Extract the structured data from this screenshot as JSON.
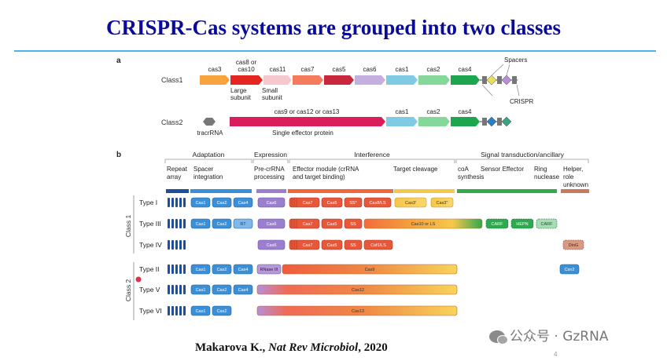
{
  "slide": {
    "title": "CRISPR-Cas systems are grouped into two classes",
    "citation_author": "Makarova K., ",
    "citation_journal": "Nat Rev Microbiol",
    "citation_year": ", 2020",
    "watermark": "公众号 · GzRNA",
    "page_number": "4"
  },
  "panel_a": {
    "label": "a",
    "class1_label": "Class1",
    "class2_label": "Class2",
    "class1_genes": [
      {
        "name": "cas3",
        "color": "#f7a43f"
      },
      {
        "name": "cas8 or\ncas10",
        "color": "#e3261f"
      },
      {
        "name": "cas11",
        "color": "#f6c7cc"
      },
      {
        "name": "cas7",
        "color": "#f47c5c"
      },
      {
        "name": "cas5",
        "color": "#c8283d"
      },
      {
        "name": "cas6",
        "color": "#c5aee0"
      },
      {
        "name": "cas1",
        "color": "#7fcbe6"
      },
      {
        "name": "cas2",
        "color": "#86d79a"
      },
      {
        "name": "cas4",
        "color": "#1ea64f"
      }
    ],
    "class2_genes": [
      {
        "name": "cas9 or cas12 or cas13",
        "color": "#d81e5b"
      },
      {
        "name": "cas1",
        "color": "#7fcbe6"
      },
      {
        "name": "cas2",
        "color": "#86d79a"
      },
      {
        "name": "cas4",
        "color": "#1ea64f"
      }
    ],
    "large_subunit": "Large\nsubunit",
    "small_subunit": "Small\nsubunit",
    "single_effector": "Single effector protein",
    "tracrRNA": "tracrRNA",
    "spacers": "Spacers",
    "crispr": "CRISPR"
  },
  "panel_b": {
    "label": "b",
    "categories": [
      {
        "name": "Adaptation"
      },
      {
        "name": "Expression"
      },
      {
        "name": "Interference"
      },
      {
        "name": "Signal transduction/ancillary"
      }
    ],
    "subheaders": [
      {
        "text": "Repeat\narray",
        "color": "#1f4e9c"
      },
      {
        "text": "Spacer\nintegration",
        "color": "#3b8fd6"
      },
      {
        "text": "Pre-crRNA\nprocessing",
        "color": "#9b7fce"
      },
      {
        "text": "Effector module (crRNA\nand target binding)",
        "color": "#f0693e"
      },
      {
        "text": "Target cleavage",
        "color": "#f6c84a"
      },
      {
        "text": "coA\nsynthesis",
        "color": "#35a94e"
      },
      {
        "text": "Sensor Effector",
        "color": "#35a94e"
      },
      {
        "text": "Ring\nnuclease",
        "color": "#35a94e"
      },
      {
        "text": "Helper,\nrole\nunknown",
        "color": "#c77b5e"
      }
    ],
    "class1_label": "Class 1",
    "class2_label": "Class 2",
    "rows": [
      {
        "type": "Type I",
        "proteins": [
          "Cas1",
          "Cas2",
          "Cas4",
          "Cas6",
          "Cas7",
          "Cas5",
          "SS*",
          "Cas8/LS",
          "Cas3'",
          "Cas3''"
        ]
      },
      {
        "type": "Type III",
        "proteins": [
          "Cas1",
          "Cas2",
          "RT",
          "Cas6",
          "Cas7",
          "Cas5",
          "SS",
          "Cas10 or LS",
          "CARF",
          "HEPN",
          "CARF"
        ]
      },
      {
        "type": "Type IV",
        "proteins": [
          "Cas6",
          "Cas7",
          "Cas5",
          "SS",
          "Csf1/LS",
          "DinG"
        ]
      },
      {
        "type": "Type II",
        "proteins": [
          "Cas1",
          "Cas2",
          "Cas4",
          "RNase III",
          "Cas9",
          "Csn2"
        ]
      },
      {
        "type": "Type V",
        "proteins": [
          "Cas1",
          "Cas2",
          "Cas4",
          "Cas12"
        ]
      },
      {
        "type": "Type VI",
        "proteins": [
          "Cas1",
          "Cas2",
          "Cas13"
        ]
      }
    ]
  }
}
